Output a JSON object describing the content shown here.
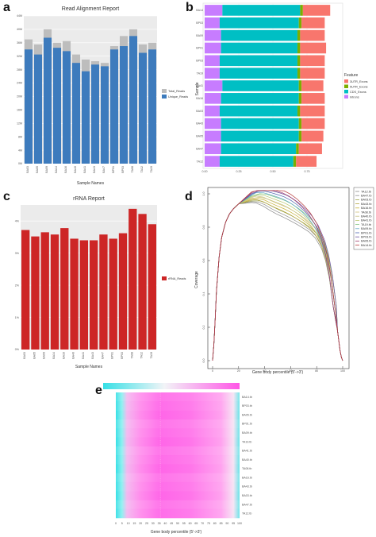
{
  "panels": {
    "a": "a",
    "b": "b",
    "c": "c",
    "d": "d",
    "e": "e"
  },
  "chart_data": [
    {
      "panel": "a",
      "type": "bar",
      "title": "Read Alignment Report",
      "xlabel": "Sample Names",
      "ylabel": "",
      "categories": [
        "BA03",
        "BA05",
        "BA09",
        "BA14",
        "BA16",
        "BA40",
        "BA41",
        "BA43",
        "BA47",
        "BP01",
        "BP03",
        "TA08",
        "TA12",
        "TA19"
      ],
      "ylim": [
        0,
        44
      ],
      "yticks": [
        "0M",
        "4M",
        "8M",
        "12M",
        "16M",
        "20M",
        "24M",
        "28M",
        "32M",
        "36M",
        "40M",
        "44M"
      ],
      "legend_position": "right",
      "colors": {
        "total": "#bdbdbd",
        "unique": "#3d7bbd"
      },
      "series": [
        {
          "name": "Total_Reads",
          "values": [
            37.0,
            35.5,
            40.0,
            36.0,
            36.5,
            32.5,
            31.0,
            30.5,
            30.0,
            35.0,
            38.0,
            40.0,
            35.5,
            36.0
          ]
        },
        {
          "name": "Unique_Reads",
          "values": [
            34.0,
            32.5,
            37.5,
            34.5,
            33.5,
            30.0,
            27.5,
            29.5,
            29.0,
            34.0,
            35.0,
            38.0,
            33.0,
            34.0
          ]
        }
      ]
    },
    {
      "panel": "b",
      "type": "bar",
      "orientation": "horizontal-stacked",
      "xlabel": "",
      "ylabel": "Sample",
      "categories": [
        "BA14",
        "BP03",
        "BA09",
        "BP01",
        "BP03",
        "TA19",
        "BA41",
        "BA16",
        "BA03",
        "BA43",
        "BA05",
        "BA47",
        "TA12"
      ],
      "xticks": [
        "0.00",
        "0.25",
        "0.50",
        "0.75"
      ],
      "xlim": [
        0,
        1.0
      ],
      "legend_title": "Feature",
      "legend_position": "right",
      "series": [
        {
          "name": "Introns",
          "color": "#c77cff",
          "values": [
            0.13,
            0.11,
            0.12,
            0.12,
            0.11,
            0.11,
            0.13,
            0.12,
            0.11,
            0.12,
            0.12,
            0.12,
            0.11
          ]
        },
        {
          "name": "CDS_Exons",
          "color": "#00bfc4",
          "values": [
            0.57,
            0.58,
            0.56,
            0.56,
            0.57,
            0.57,
            0.56,
            0.57,
            0.57,
            0.57,
            0.57,
            0.55,
            0.54
          ]
        },
        {
          "name": "5UTR_Exons",
          "color": "#7cae00",
          "values": [
            0.02,
            0.02,
            0.02,
            0.02,
            0.02,
            0.02,
            0.02,
            0.02,
            0.02,
            0.02,
            0.02,
            0.02,
            0.02
          ]
        },
        {
          "name": "3UTR_Exons",
          "color": "#f8766d",
          "values": [
            0.2,
            0.17,
            0.18,
            0.19,
            0.18,
            0.18,
            0.16,
            0.17,
            0.18,
            0.17,
            0.16,
            0.17,
            0.15
          ]
        }
      ]
    },
    {
      "panel": "c",
      "type": "bar",
      "title": "rRNA Report",
      "xlabel": "Sample Names",
      "ylabel": "",
      "categories": [
        "BA03",
        "BA05",
        "BA09",
        "BA14",
        "BA16",
        "BA40",
        "BA41",
        "BA43",
        "BA47",
        "BP01",
        "BP03",
        "TA08",
        "TA12",
        "TA19"
      ],
      "ylim": [
        0,
        4.5
      ],
      "yticks": [
        "0%",
        "1%",
        "2%",
        "3%",
        "4%"
      ],
      "legend_position": "right",
      "colors": {
        "rrna": "#cd2626"
      },
      "series": [
        {
          "name": "rRNA_Reads",
          "values": [
            3.72,
            3.52,
            3.65,
            3.58,
            3.78,
            3.45,
            3.4,
            3.4,
            3.58,
            3.45,
            3.62,
            4.38,
            4.22,
            3.9
          ]
        }
      ]
    },
    {
      "panel": "d",
      "type": "line",
      "xlabel": "Gene body percentile (5'->3')",
      "ylabel": "Coverage",
      "xlim": [
        0,
        100
      ],
      "ylim": [
        0,
        1.0
      ],
      "xticks": [
        "0",
        "20",
        "40",
        "60",
        "80",
        "100"
      ],
      "yticks": [
        "0.0",
        "0.2",
        "0.4",
        "0.6",
        "0.8",
        "1.0"
      ],
      "legend_position": "right",
      "x": [
        0,
        1,
        2,
        3,
        5,
        7,
        10,
        13,
        16,
        20,
        25,
        30,
        35,
        40,
        45,
        50,
        55,
        60,
        65,
        70,
        75,
        80,
        85,
        88,
        91,
        94,
        96,
        98,
        99,
        100
      ],
      "base": [
        0.0,
        0.1,
        0.25,
        0.42,
        0.62,
        0.74,
        0.83,
        0.88,
        0.91,
        0.94,
        0.96,
        0.98,
        0.99,
        0.985,
        0.97,
        0.955,
        0.94,
        0.92,
        0.895,
        0.865,
        0.83,
        0.78,
        0.7,
        0.62,
        0.5,
        0.32,
        0.18,
        0.06,
        0.02,
        0.0
      ],
      "series": [
        {
          "name": "TA12.tb",
          "color": "#8b8b8b"
        },
        {
          "name": "BA47.tb",
          "color": "#8f8f8f"
        },
        {
          "name": "BA03.tb",
          "color": "#9aa34a"
        },
        {
          "name": "BA43.tb",
          "color": "#b3a440"
        },
        {
          "name": "BA16.tb",
          "color": "#c7b33a"
        },
        {
          "name": "TA08.tb",
          "color": "#d1c27a"
        },
        {
          "name": "BA40.tb",
          "color": "#c6c17f"
        },
        {
          "name": "BA41.tb",
          "color": "#b8c76a"
        },
        {
          "name": "TA19.tb",
          "color": "#7bc47b"
        },
        {
          "name": "BA09.tb",
          "color": "#5fa6c8"
        },
        {
          "name": "BP01.tb",
          "color": "#4b64b0"
        },
        {
          "name": "BP03.tb",
          "color": "#6e4fa0"
        },
        {
          "name": "BA05.tb",
          "color": "#a03a6a"
        },
        {
          "name": "BA14.tb",
          "color": "#b83a3a"
        }
      ]
    },
    {
      "panel": "e",
      "type": "heatmap",
      "xlabel": "Gene body percentile (5'->3')",
      "xlim": [
        0,
        100
      ],
      "xticks": [
        "0",
        "5",
        "10",
        "15",
        "20",
        "25",
        "30",
        "35",
        "40",
        "45",
        "50",
        "55",
        "60",
        "65",
        "70",
        "75",
        "80",
        "85",
        "90",
        "95",
        "100"
      ],
      "rows": [
        "BA14.tb",
        "BP03.tb",
        "BA05.tb",
        "BP01.tb",
        "BA09.tb",
        "TA19.tb",
        "BA41.tb",
        "BA40.tb",
        "TA08.tb",
        "BA16.tb",
        "BA43.tb",
        "BA03.tb",
        "BA47.tb",
        "TA12.tb"
      ],
      "colors": {
        "low": "#37e0e6",
        "high": "#ff55e6"
      }
    }
  ]
}
